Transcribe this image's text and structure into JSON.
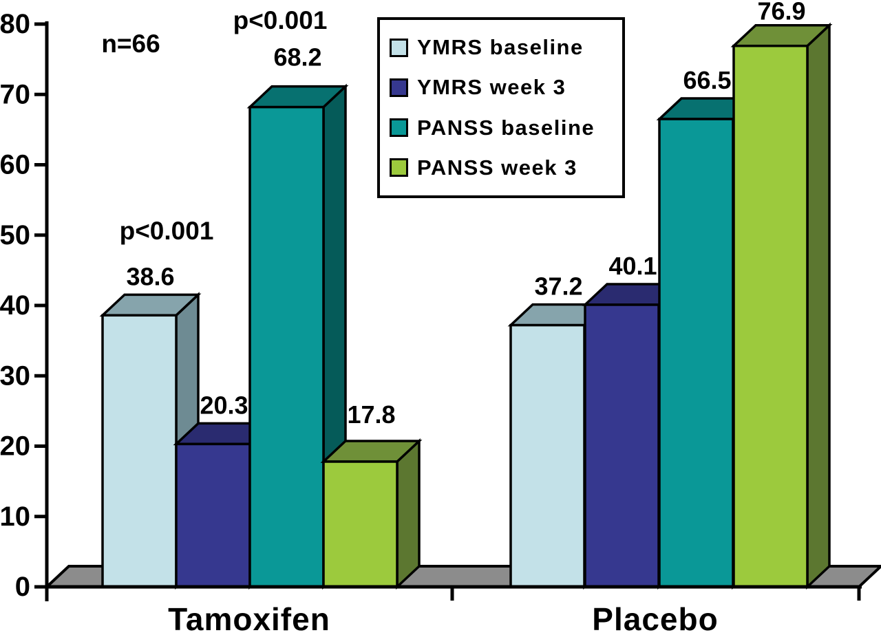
{
  "figure": {
    "background": "#FFFFFF"
  },
  "chart_data": {
    "type": "bar",
    "style": "3d-oblique-columns",
    "title": "",
    "xlabel": "",
    "ylabel": "",
    "categories": [
      "Tamoxifen",
      "Placebo"
    ],
    "series": [
      {
        "name": "YMRS baseline",
        "color": "#C3E1E8",
        "top_color": "#86A4AC",
        "side_color": "#6E8B93",
        "values": [
          38.6,
          37.2
        ]
      },
      {
        "name": "YMRS week 3",
        "color": "#36388F",
        "top_color": "#2A2B70",
        "side_color": "#23255C",
        "values": [
          20.3,
          40.1
        ]
      },
      {
        "name": "PANSS baseline",
        "color": "#0A9897",
        "top_color": "#077170",
        "side_color": "#055B59",
        "values": [
          68.2,
          66.5
        ]
      },
      {
        "name": "PANSS week 3",
        "color": "#9CCA3D",
        "top_color": "#6F9038",
        "side_color": "#5C7730",
        "values": [
          17.8,
          76.9
        ]
      }
    ],
    "ylim": [
      0,
      80
    ],
    "yticks": [
      0,
      10,
      20,
      30,
      40,
      50,
      60,
      70,
      80
    ],
    "grid": false,
    "legend_position": "top-center",
    "axis_color": "#000000",
    "floor_color": "#8C8C8C",
    "value_labels_decimals": 1,
    "annotations": [
      {
        "id": "sample-size",
        "text": "n=66"
      },
      {
        "id": "p-ymrs",
        "text": "p<0.001"
      },
      {
        "id": "p-panss",
        "text": "p<0.001"
      }
    ]
  }
}
